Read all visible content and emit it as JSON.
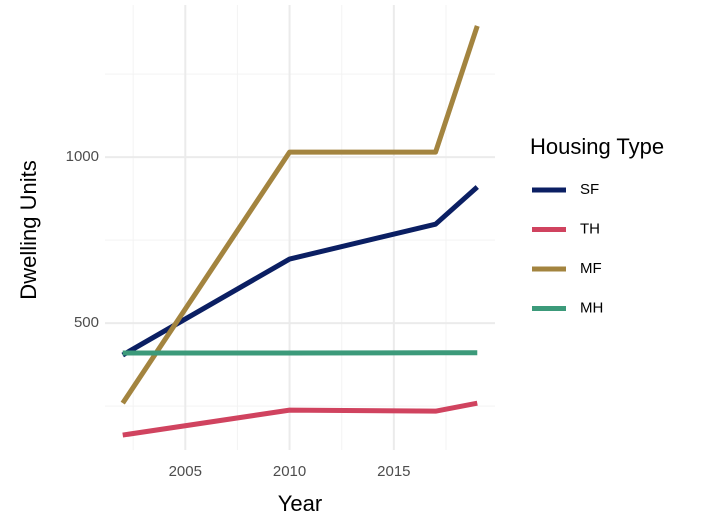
{
  "chart_data": {
    "type": "line",
    "x_label": "Year",
    "y_label": "Dwelling Units",
    "legend_title": "Housing Type",
    "x": [
      2002,
      2010,
      2017,
      2019
    ],
    "series": [
      {
        "name": "SF",
        "color": "#0b1f63",
        "values": [
          404,
          693,
          798,
          910
        ]
      },
      {
        "name": "TH",
        "color": "#d0435f",
        "values": [
          163,
          238,
          235,
          259
        ]
      },
      {
        "name": "MF",
        "color": "#a3843f",
        "values": [
          259,
          1015,
          1015,
          1395
        ]
      },
      {
        "name": "MH",
        "color": "#3c9a7a",
        "values": [
          410,
          410,
          411,
          411
        ]
      }
    ],
    "xlim": [
      2001.15,
      2019.85
    ],
    "xticks": [
      2005,
      2010,
      2015
    ],
    "xminor": [
      2002.5,
      2007.5,
      2012.5,
      2017.5
    ],
    "ylim": [
      118,
      1458
    ],
    "yticks": [
      500,
      1000
    ],
    "yminor": [
      250,
      750,
      1250
    ],
    "grid": true,
    "legend": "right"
  }
}
